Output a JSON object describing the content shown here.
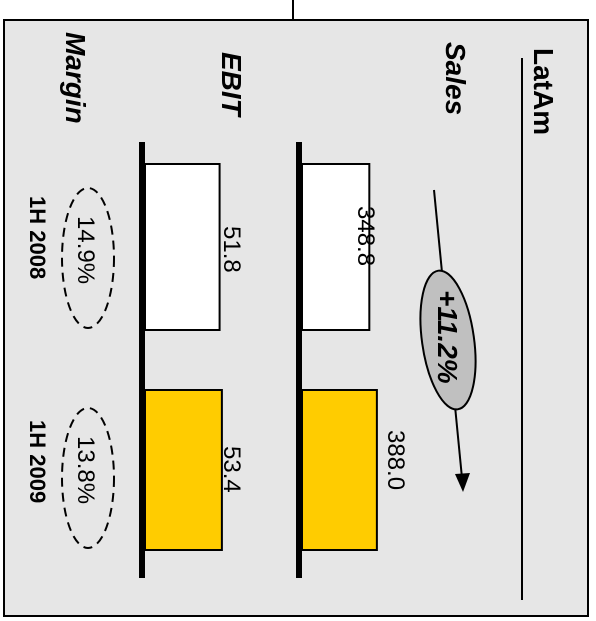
{
  "colors": {
    "panel_background": "#e6e6e6",
    "panel_border": "#000000",
    "bar_2009": "#ffcc00",
    "bar_2008": "#ffffff",
    "growth_badge_fill": "#c0c0c0"
  },
  "panel": {
    "title": "LatAm"
  },
  "growth_badge": {
    "label": "+11.2%"
  },
  "chart_data": {
    "type": "bar",
    "orientation": "rotated-90-clockwise",
    "categories": [
      "1H 2008",
      "1H 2009"
    ],
    "series": [
      {
        "name": "Sales",
        "values": [
          348.8,
          388.0
        ]
      },
      {
        "name": "EBIT",
        "values": [
          51.8,
          53.4
        ]
      }
    ],
    "series_value_labels": [
      [
        "348.8",
        "388.0"
      ],
      [
        "51.8",
        "53.4"
      ]
    ],
    "margin": {
      "label": "Margin",
      "values": [
        "14.9%",
        "13.8%"
      ]
    },
    "growth": "+11.2%",
    "bar_colors": [
      "#ffffff",
      "#ffcc00"
    ]
  }
}
